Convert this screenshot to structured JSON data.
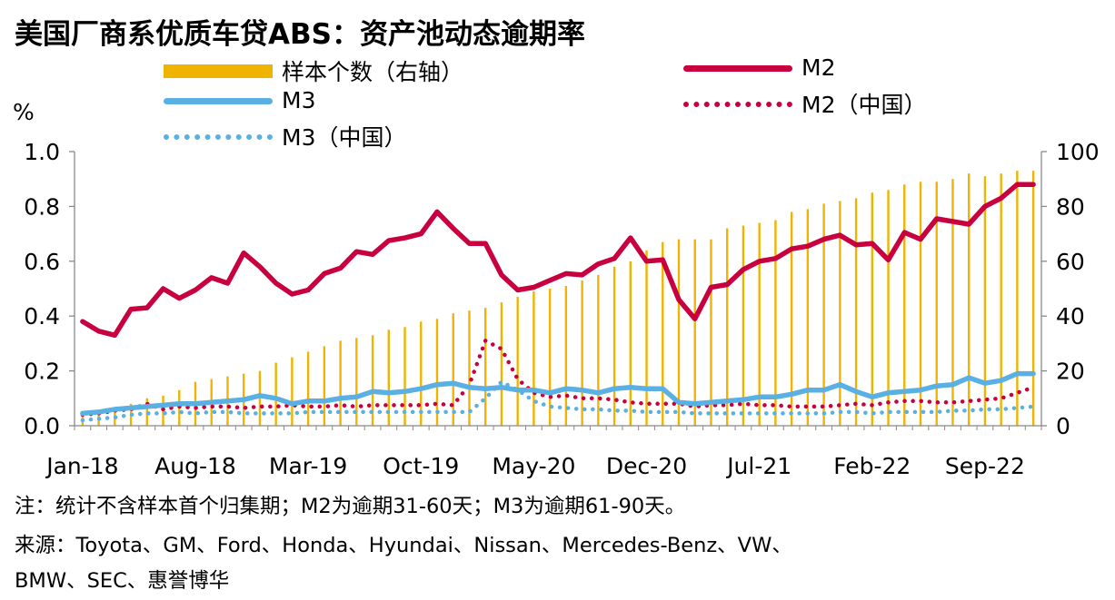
{
  "title": "美国厂商系优质车贷ABS：资产池动态逾期率",
  "unit_label": "%",
  "legend": {
    "count": "样本个数（右轴）",
    "m2": "M2",
    "m3": "M3",
    "m2cn": "M2（中国）",
    "m3cn": "M3（中国）"
  },
  "colors": {
    "count": "#F0B400",
    "m2": "#C8003F",
    "m3": "#5AB0E3",
    "m2cn": "#C8003F",
    "m3cn": "#5AB0E3"
  },
  "notes": {
    "line1": "注：统计不含样本首个归集期；M2为逾期31-60天；M3为逾期61-90天。",
    "line2": "来源：Toyota、GM、Ford、Honda、Hyundai、Nissan、Mercedes-Benz、VW、",
    "line3": "BMW、SEC、惠誉博华"
  },
  "chart_data": {
    "type": "bar+line",
    "x_tick_labels": [
      "Jan-18",
      "Aug-18",
      "Mar-19",
      "Oct-19",
      "May-20",
      "Dec-20",
      "Jul-21",
      "Feb-22",
      "Sep-22"
    ],
    "x_tick_index": [
      0,
      7,
      14,
      21,
      28,
      35,
      42,
      49,
      56
    ],
    "n_periods": 60,
    "y_left": {
      "min": 0,
      "max": 1.0,
      "ticks": [
        "0.0",
        "0.2",
        "0.4",
        "0.6",
        "0.8",
        "1.0"
      ]
    },
    "y_right": {
      "min": 0,
      "max": 100,
      "ticks": [
        "0",
        "20",
        "40",
        "60",
        "80",
        "100"
      ]
    },
    "series": [
      {
        "name": "样本个数（右轴）",
        "axis": "right",
        "kind": "bar",
        "values": [
          4,
          5,
          6,
          8,
          10,
          11,
          13,
          16,
          17,
          18,
          19,
          20,
          23,
          25,
          27,
          29,
          31,
          32,
          33,
          35,
          36,
          38,
          39,
          41,
          42,
          43,
          45,
          47,
          49,
          50,
          51,
          53,
          55,
          58,
          60,
          64,
          67,
          68,
          68,
          68,
          72,
          73,
          74,
          75,
          78,
          79,
          81,
          82,
          83,
          85,
          86,
          88,
          89,
          89,
          90,
          92,
          91,
          92,
          93,
          93
        ]
      },
      {
        "name": "M2",
        "axis": "left",
        "kind": "solid",
        "values": [
          0.38,
          0.345,
          0.33,
          0.425,
          0.43,
          0.5,
          0.465,
          0.495,
          0.54,
          0.52,
          0.63,
          0.58,
          0.52,
          0.48,
          0.495,
          0.555,
          0.575,
          0.635,
          0.625,
          0.675,
          0.685,
          0.7,
          0.78,
          0.72,
          0.665,
          0.665,
          0.55,
          0.495,
          0.505,
          0.53,
          0.555,
          0.55,
          0.59,
          0.61,
          0.685,
          0.6,
          0.605,
          0.46,
          0.39,
          0.505,
          0.515,
          0.57,
          0.6,
          0.61,
          0.645,
          0.655,
          0.68,
          0.695,
          0.66,
          0.665,
          0.605,
          0.705,
          0.68,
          0.755,
          0.745,
          0.735,
          0.8,
          0.83,
          0.88,
          0.88
        ]
      },
      {
        "name": "M3",
        "axis": "left",
        "kind": "solid",
        "values": [
          0.045,
          0.05,
          0.06,
          0.065,
          0.07,
          0.075,
          0.08,
          0.08,
          0.085,
          0.09,
          0.095,
          0.11,
          0.1,
          0.08,
          0.09,
          0.09,
          0.1,
          0.105,
          0.125,
          0.12,
          0.125,
          0.135,
          0.15,
          0.155,
          0.14,
          0.135,
          0.14,
          0.13,
          0.13,
          0.12,
          0.135,
          0.13,
          0.12,
          0.135,
          0.14,
          0.135,
          0.135,
          0.085,
          0.08,
          0.085,
          0.09,
          0.095,
          0.105,
          0.105,
          0.115,
          0.13,
          0.13,
          0.15,
          0.125,
          0.105,
          0.12,
          0.125,
          0.13,
          0.145,
          0.15,
          0.175,
          0.155,
          0.165,
          0.19,
          0.19
        ]
      },
      {
        "name": "M2（中国）",
        "axis": "left",
        "kind": "dotted",
        "values": [
          0.04,
          0.045,
          0.055,
          0.06,
          0.08,
          0.06,
          0.07,
          0.065,
          0.07,
          0.07,
          0.065,
          0.07,
          0.07,
          0.075,
          0.07,
          0.07,
          0.075,
          0.07,
          0.075,
          0.075,
          0.075,
          0.075,
          0.08,
          0.075,
          0.15,
          0.31,
          0.28,
          0.17,
          0.12,
          0.105,
          0.11,
          0.1,
          0.1,
          0.095,
          0.085,
          0.08,
          0.08,
          0.08,
          0.07,
          0.075,
          0.075,
          0.08,
          0.075,
          0.075,
          0.07,
          0.07,
          0.07,
          0.075,
          0.08,
          0.075,
          0.085,
          0.09,
          0.09,
          0.085,
          0.085,
          0.09,
          0.095,
          0.1,
          0.12,
          0.14
        ]
      },
      {
        "name": "M3（中国）",
        "axis": "left",
        "kind": "dotted",
        "values": [
          0.02,
          0.025,
          0.03,
          0.04,
          0.045,
          0.045,
          0.05,
          0.045,
          0.05,
          0.05,
          0.045,
          0.045,
          0.045,
          0.045,
          0.05,
          0.05,
          0.05,
          0.05,
          0.05,
          0.05,
          0.05,
          0.05,
          0.05,
          0.05,
          0.05,
          0.1,
          0.16,
          0.13,
          0.09,
          0.07,
          0.065,
          0.06,
          0.06,
          0.055,
          0.055,
          0.05,
          0.05,
          0.05,
          0.045,
          0.045,
          0.045,
          0.045,
          0.045,
          0.045,
          0.045,
          0.045,
          0.045,
          0.05,
          0.05,
          0.045,
          0.05,
          0.05,
          0.05,
          0.05,
          0.055,
          0.055,
          0.06,
          0.06,
          0.065,
          0.07
        ]
      }
    ],
    "grid": false,
    "legend_position": "top"
  }
}
